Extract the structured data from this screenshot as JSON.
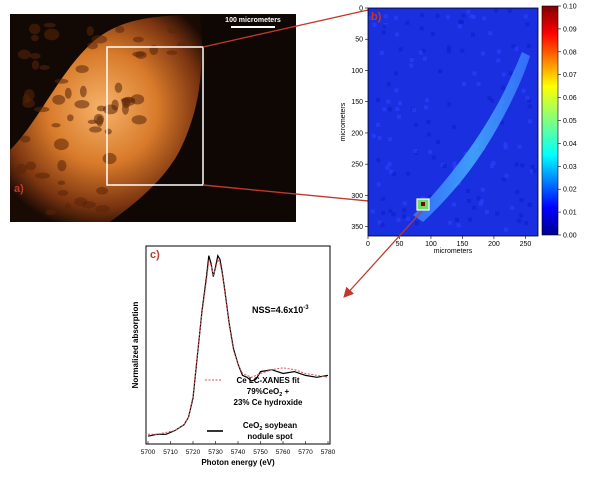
{
  "panel_a": {
    "label": "a)",
    "scalebar_label": "100 micrometers"
  },
  "panel_b": {
    "label": "b)",
    "x_axis_label": "micrometers",
    "y_axis_label": "micrometers",
    "x_ticks": [
      "0",
      "50",
      "100",
      "150",
      "200",
      "250"
    ],
    "y_ticks": [
      "0",
      "50",
      "100",
      "150",
      "200",
      "250",
      "300",
      "350"
    ],
    "colorbar_ticks": [
      "0.00",
      "0.01",
      "0.02",
      "0.03",
      "0.04",
      "0.05",
      "0.06",
      "0.07",
      "0.08",
      "0.09",
      "0.10"
    ]
  },
  "panel_c": {
    "label": "c)",
    "annotation": "NSS=4.6x10",
    "annotation_exp": "-3",
    "legend_fit_line1": "Ce LC-XANES fit",
    "legend_fit_line2_pre": "79%CeO",
    "legend_fit_line2_sub": "2",
    "legend_fit_line2_post": " +",
    "legend_fit_line3": "23% Ce hydroxide",
    "legend_sample_line1_pre": "CeO",
    "legend_sample_line1_sub": "2",
    "legend_sample_line1_post": " soybean",
    "legend_sample_line2": "nodule spot",
    "x_axis_label": "Photon energy (eV)",
    "y_axis_label": "Normalized absorption",
    "x_ticks": [
      "5700",
      "5710",
      "5720",
      "5730",
      "5740",
      "5750",
      "5760",
      "5770",
      "5780"
    ]
  },
  "colors": {
    "panel_label": "#c0392b",
    "arrow": "#c0392b",
    "fit_line": "#d9534f",
    "data_line": "#000000"
  },
  "chart_data": {
    "type": "line",
    "xlabel": "Photon energy (eV)",
    "ylabel": "Normalized absorption",
    "xlim": [
      5700,
      5780
    ],
    "series": [
      {
        "name": "CeO2 soybean nodule spot",
        "x": [
          5700,
          5704,
          5708,
          5712,
          5716,
          5718,
          5720,
          5722,
          5724,
          5726,
          5727,
          5728,
          5729,
          5730,
          5731,
          5732,
          5733,
          5734,
          5736,
          5738,
          5740,
          5742,
          5744,
          5746,
          5748,
          5750,
          5755,
          5760,
          5765,
          5770,
          5775,
          5780
        ],
        "y": [
          0.02,
          0.03,
          0.03,
          0.05,
          0.08,
          0.12,
          0.22,
          0.45,
          0.68,
          0.86,
          0.97,
          0.93,
          0.86,
          0.91,
          0.97,
          0.95,
          0.88,
          0.8,
          0.62,
          0.48,
          0.4,
          0.34,
          0.33,
          0.31,
          0.32,
          0.36,
          0.37,
          0.35,
          0.36,
          0.34,
          0.33,
          0.34
        ]
      },
      {
        "name": "Ce LC-XANES fit 79%CeO2 + 23% Ce hydroxide",
        "x": [
          5700,
          5704,
          5708,
          5712,
          5716,
          5718,
          5720,
          5722,
          5724,
          5726,
          5727,
          5728,
          5729,
          5730,
          5731,
          5732,
          5733,
          5734,
          5736,
          5738,
          5740,
          5742,
          5744,
          5746,
          5748,
          5750,
          5755,
          5760,
          5765,
          5770,
          5775,
          5780
        ],
        "y": [
          0.03,
          0.03,
          0.04,
          0.05,
          0.08,
          0.12,
          0.23,
          0.46,
          0.67,
          0.84,
          0.94,
          0.92,
          0.87,
          0.9,
          0.95,
          0.93,
          0.87,
          0.79,
          0.61,
          0.47,
          0.4,
          0.35,
          0.34,
          0.33,
          0.34,
          0.35,
          0.37,
          0.38,
          0.37,
          0.35,
          0.34,
          0.33
        ]
      }
    ]
  }
}
